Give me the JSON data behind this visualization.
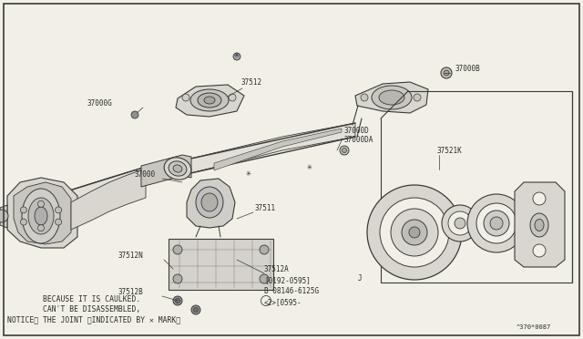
{
  "bg_color": "#f2f0e6",
  "line_color": "#3a3a3a",
  "text_color": "#2a2a2a",
  "border_color": "#3a3a3a",
  "notice_line1": "NOTICE〉 THE JOINT 〈INDICATED BY ✕ MARK〉",
  "notice_line2": "        CAN'T BE DISASSEMBLED,",
  "notice_line3": "        BECAUSE IT IS CAULKED.",
  "diagram_ref": "^370*0087",
  "lw_main": 0.8,
  "lw_thin": 0.5,
  "lw_border": 1.0,
  "font_size": 5.5
}
